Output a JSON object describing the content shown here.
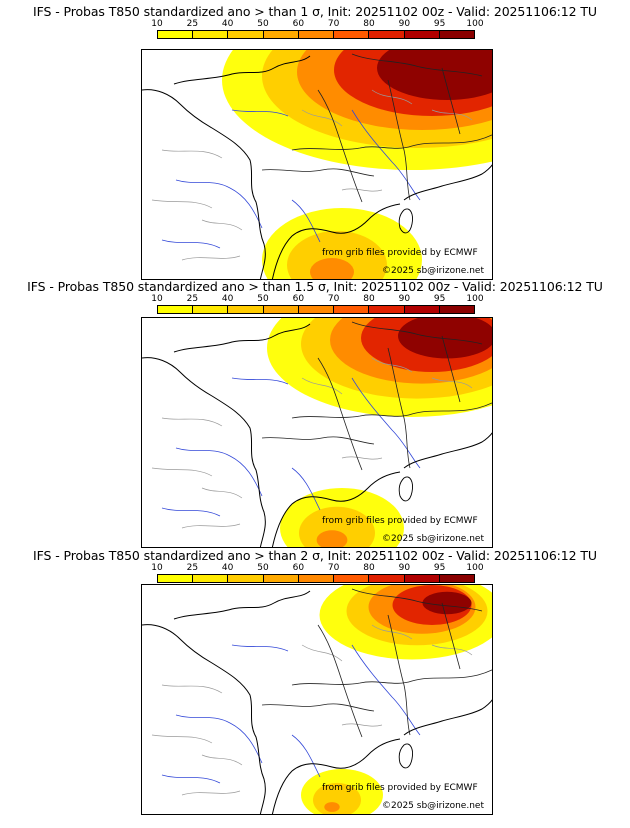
{
  "colorbar": {
    "labels": [
      "10",
      "25",
      "40",
      "50",
      "60",
      "70",
      "80",
      "90",
      "95",
      "100"
    ],
    "colors": [
      "#ffff00",
      "#ffea00",
      "#ffcc00",
      "#ffaa00",
      "#ff8800",
      "#ff5a00",
      "#e02000",
      "#b00000",
      "#8a0000"
    ]
  },
  "panels": [
    {
      "title": "IFS - Probas T850  standardized ano > than 1 σ, Init: 20251102 00z - Valid: 20251106:12 TU",
      "source_credit": "from grib files provided by ECMWF",
      "copyright": "©2025 sb@irizone.net",
      "intensity": 1.0
    },
    {
      "title": "IFS - Probas T850  standardized ano > than 1.5 σ, Init: 20251102 00z - Valid: 20251106:12 TU",
      "source_credit": "from grib files provided by ECMWF",
      "copyright": "©2025 sb@irizone.net",
      "intensity": 0.7
    },
    {
      "title": "IFS - Probas T850  standardized ano > than 2 σ, Init: 20251102 00z - Valid: 20251106:12 TU",
      "source_credit": "from grib files provided by ECMWF",
      "copyright": "©2025 sb@irizone.net",
      "intensity": 0.35
    }
  ]
}
